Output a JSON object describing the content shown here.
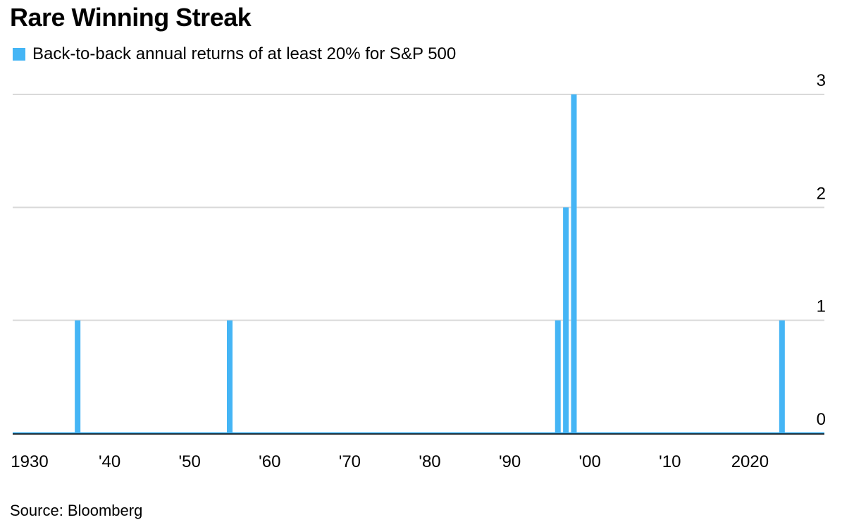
{
  "header": {
    "title": "Rare Winning Streak"
  },
  "footer": {
    "source": "Source: Bloomberg"
  },
  "chart_data": {
    "type": "bar",
    "title": "Rare Winning Streak",
    "xlabel": "",
    "ylabel": "",
    "xlim": [
      1928,
      2029
    ],
    "ylim": [
      0,
      3
    ],
    "yticks": [
      0,
      1,
      2,
      3
    ],
    "y_axis_side": "right",
    "grid": true,
    "legend_position": "top-left",
    "x_tick_labels": [
      {
        "x": 1930,
        "label": "1930"
      },
      {
        "x": 1940,
        "label": "'40"
      },
      {
        "x": 1950,
        "label": "'50"
      },
      {
        "x": 1960,
        "label": "'60"
      },
      {
        "x": 1970,
        "label": "'70"
      },
      {
        "x": 1980,
        "label": "'80"
      },
      {
        "x": 1990,
        "label": "'90"
      },
      {
        "x": 2000,
        "label": "'00"
      },
      {
        "x": 2010,
        "label": "'10"
      },
      {
        "x": 2020,
        "label": "2020"
      }
    ],
    "series": [
      {
        "name": "Back-to-back annual returns of at least 20% for S&P 500",
        "color": "#45b5f5",
        "points": [
          {
            "x": 1936,
            "y": 1
          },
          {
            "x": 1955,
            "y": 1
          },
          {
            "x": 1996,
            "y": 1
          },
          {
            "x": 1997,
            "y": 2
          },
          {
            "x": 1998,
            "y": 3
          },
          {
            "x": 2024,
            "y": 1
          }
        ]
      }
    ]
  }
}
